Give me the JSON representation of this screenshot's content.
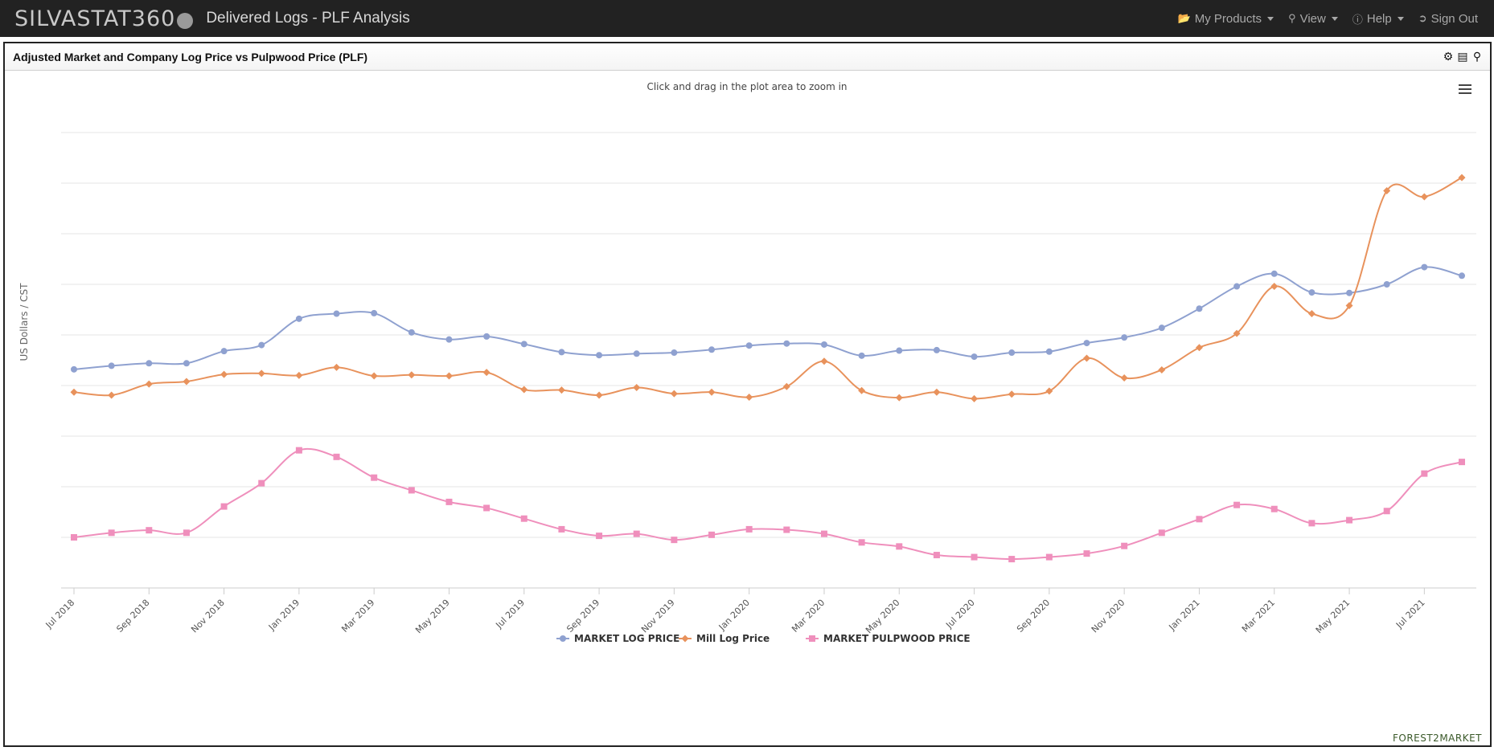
{
  "navbar": {
    "brand": "SILVASTAT360",
    "title": "Delivered Logs - PLF Analysis",
    "items": [
      {
        "label": "My Products",
        "icon": "folder-open-icon"
      },
      {
        "label": "View",
        "icon": "search-icon"
      },
      {
        "label": "Help",
        "icon": "help-circle-icon"
      },
      {
        "label": "Sign Out",
        "icon": "sign-out-icon"
      }
    ]
  },
  "panel": {
    "title": "Adjusted Market and Company Log Price vs Pulpwood Price (PLF)",
    "tools": [
      "gear-icon",
      "list-icon",
      "zoom-icon"
    ]
  },
  "chart_data": {
    "type": "line",
    "subtitle": "Click and drag in the plot area to zoom in",
    "ylabel": "US Dollars / CST",
    "ytick_labels_visible": false,
    "grid": "horizontal",
    "legend": "bottom-center",
    "x_tick_labels": [
      "Jul 2018",
      "Sep 2018",
      "Nov 2018",
      "Jan 2019",
      "Mar 2019",
      "May 2019",
      "Jul 2019",
      "Sep 2019",
      "Nov 2019",
      "Jan 2020",
      "Mar 2020",
      "May 2020",
      "Jul 2020",
      "Sep 2020",
      "Nov 2020",
      "Jan 2021",
      "Mar 2021",
      "May 2021",
      "Jul 2021"
    ],
    "x": [
      "2018-07",
      "2018-08",
      "2018-09",
      "2018-10",
      "2018-11",
      "2018-12",
      "2019-01",
      "2019-02",
      "2019-03",
      "2019-04",
      "2019-05",
      "2019-06",
      "2019-07",
      "2019-08",
      "2019-09",
      "2019-10",
      "2019-11",
      "2019-12",
      "2020-01",
      "2020-02",
      "2020-03",
      "2020-04",
      "2020-05",
      "2020-06",
      "2020-07",
      "2020-08",
      "2020-09",
      "2020-10",
      "2020-11",
      "2020-12",
      "2021-01",
      "2021-02",
      "2021-03",
      "2021-04",
      "2021-05",
      "2021-06",
      "2021-07",
      "2021-08"
    ],
    "ylim": [
      0,
      9
    ],
    "series": [
      {
        "name": "MARKET LOG PRICE",
        "color": "#8fa1d0",
        "marker": "circle",
        "values": [
          4.32,
          4.39,
          4.44,
          4.44,
          4.68,
          4.8,
          5.32,
          5.42,
          5.43,
          5.05,
          4.91,
          4.97,
          4.82,
          4.66,
          4.6,
          4.63,
          4.65,
          4.71,
          4.79,
          4.83,
          4.81,
          4.59,
          4.69,
          4.7,
          4.57,
          4.65,
          4.67,
          4.84,
          4.95,
          5.14,
          5.52,
          5.96,
          6.21,
          5.84,
          5.83,
          6.0,
          6.34,
          6.17
        ]
      },
      {
        "name": "Mill Log Price",
        "color": "#e8925c",
        "marker": "diamond",
        "values": [
          3.87,
          3.81,
          4.03,
          4.08,
          4.22,
          4.24,
          4.2,
          4.36,
          4.19,
          4.21,
          4.19,
          4.26,
          3.92,
          3.91,
          3.81,
          3.96,
          3.84,
          3.87,
          3.77,
          3.98,
          4.48,
          3.9,
          3.76,
          3.87,
          3.74,
          3.83,
          3.89,
          4.54,
          4.15,
          4.31,
          4.75,
          5.03,
          5.96,
          5.42,
          5.58,
          7.85,
          7.73,
          8.11
        ]
      },
      {
        "name": "MARKET PULPWOOD PRICE",
        "color": "#ef8fbc",
        "marker": "square",
        "values": [
          1.0,
          1.09,
          1.14,
          1.09,
          1.61,
          2.07,
          2.72,
          2.59,
          2.18,
          1.93,
          1.7,
          1.58,
          1.37,
          1.16,
          1.03,
          1.07,
          0.95,
          1.05,
          1.16,
          1.15,
          1.07,
          0.9,
          0.82,
          0.65,
          0.61,
          0.57,
          0.61,
          0.68,
          0.83,
          1.09,
          1.36,
          1.64,
          1.56,
          1.28,
          1.34,
          1.52,
          2.26,
          2.49
        ]
      }
    ]
  },
  "credit": "FOREST2MARKET"
}
